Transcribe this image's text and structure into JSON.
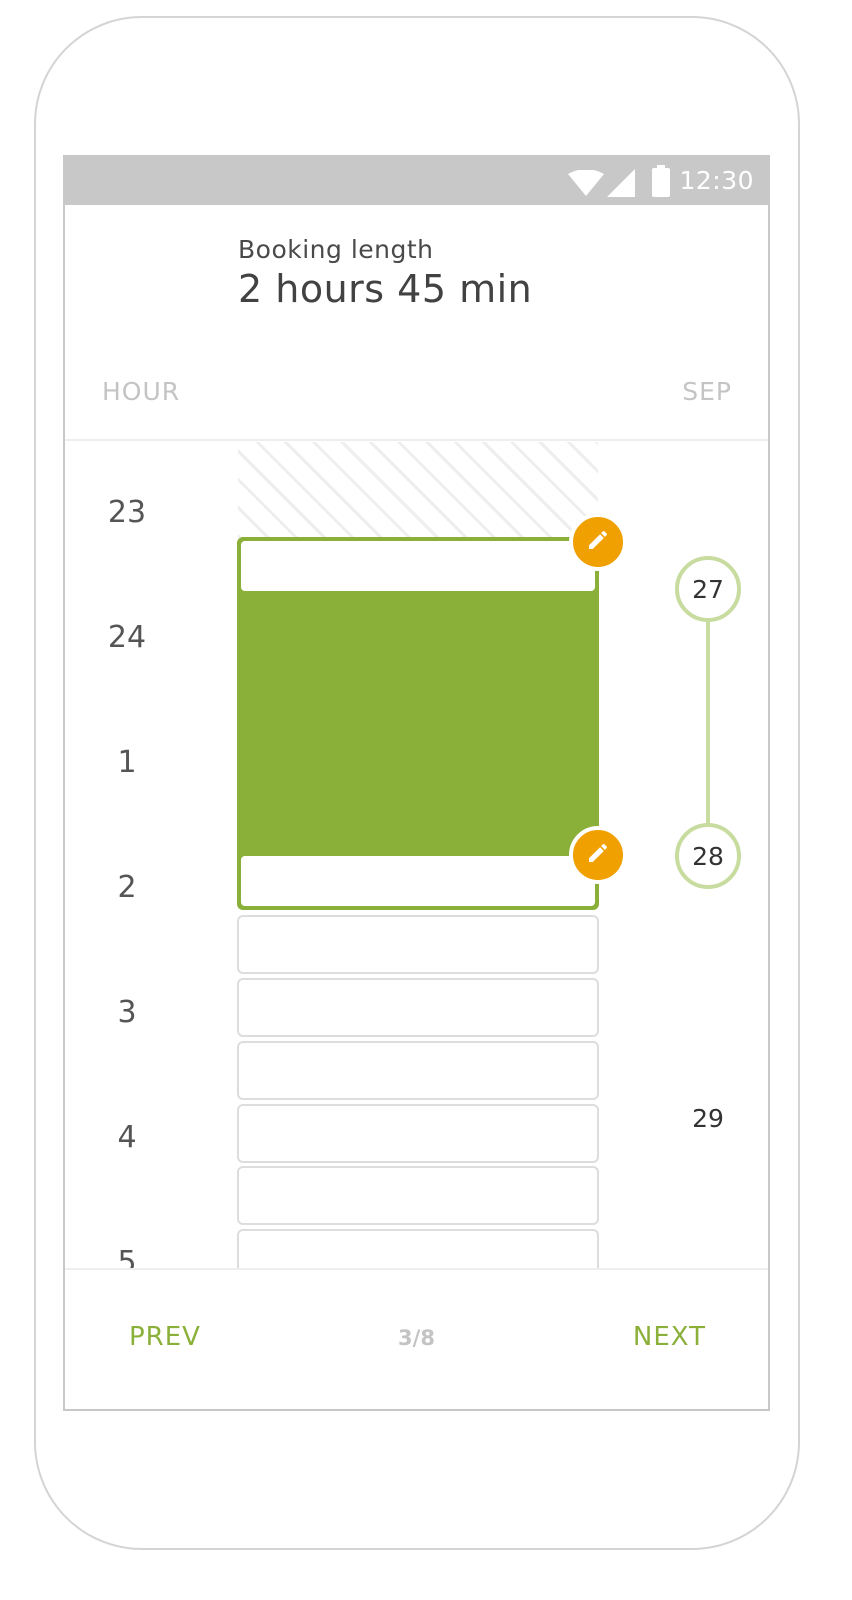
{
  "status_bar": {
    "time": "12:30",
    "icons": [
      "wifi-icon",
      "cell-signal-icon",
      "battery-icon"
    ]
  },
  "header": {
    "label": "Booking length",
    "value": "2 hours 45 min"
  },
  "columns": {
    "hour_label": "HOUR",
    "month_label": "SEP"
  },
  "hours": [
    "23",
    "24",
    "1",
    "2",
    "3",
    "4",
    "5"
  ],
  "days": {
    "start": "27",
    "end": "28",
    "next": "29"
  },
  "footer": {
    "prev_label": "PREV",
    "page_indicator": "3/8",
    "next_label": "NEXT"
  },
  "colors": {
    "accent_green": "#8bb03a",
    "handle_orange": "#f0a000",
    "range_light_green": "#c8dca0",
    "status_bar_gray": "#c8c8c8"
  }
}
